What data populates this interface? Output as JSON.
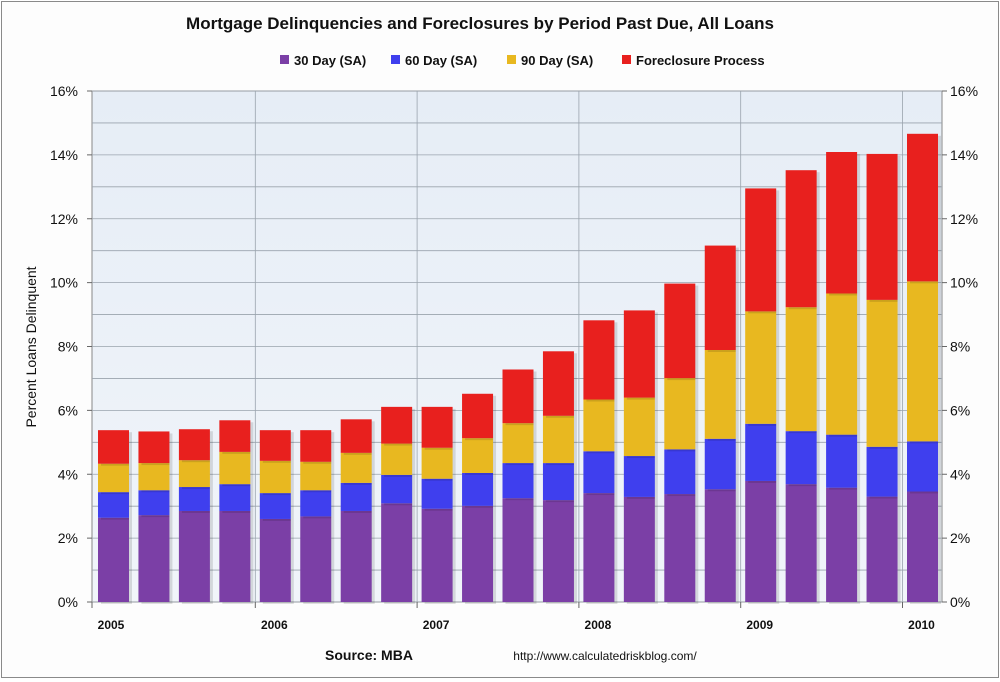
{
  "chart_data": {
    "type": "bar",
    "stacked": true,
    "title": "Mortgage Delinquencies and Foreclosures by Period Past Due, All Loans",
    "ylabel": "Percent Loans Delinquent",
    "xlabel": "",
    "ylim": [
      0,
      16
    ],
    "yticks": [
      "0%",
      "2%",
      "4%",
      "6%",
      "8%",
      "10%",
      "12%",
      "14%",
      "16%"
    ],
    "ytick_values": [
      0,
      2,
      4,
      6,
      8,
      10,
      12,
      14,
      16
    ],
    "xtick_labels": [
      "2005",
      "2006",
      "2007",
      "2008",
      "2009",
      "2010"
    ],
    "grid": true,
    "legend_position": "top",
    "categories": [
      "2005Q1",
      "2005Q2",
      "2005Q3",
      "2005Q4",
      "2006Q1",
      "2006Q2",
      "2006Q3",
      "2006Q4",
      "2007Q1",
      "2007Q2",
      "2007Q3",
      "2007Q4",
      "2008Q1",
      "2008Q2",
      "2008Q3",
      "2008Q4",
      "2009Q1",
      "2009Q2",
      "2009Q3",
      "2009Q4",
      "2010Q1"
    ],
    "series": [
      {
        "name": "30 Day (SA)",
        "color": "#7b3fa6",
        "values": [
          2.64,
          2.72,
          2.85,
          2.85,
          2.6,
          2.68,
          2.85,
          3.09,
          2.92,
          3.01,
          3.25,
          3.19,
          3.41,
          3.29,
          3.38,
          3.53,
          3.79,
          3.69,
          3.58,
          3.3,
          3.46
        ]
      },
      {
        "name": "60 Day (SA)",
        "color": "#3f3fee",
        "values": [
          0.8,
          0.78,
          0.75,
          0.84,
          0.81,
          0.82,
          0.88,
          0.89,
          0.94,
          1.03,
          1.1,
          1.16,
          1.31,
          1.28,
          1.4,
          1.58,
          1.79,
          1.66,
          1.66,
          1.56,
          1.57
        ]
      },
      {
        "name": "90 Day (SA)",
        "color": "#e8b820",
        "values": [
          0.89,
          0.85,
          0.84,
          1.01,
          1.01,
          0.89,
          0.94,
          0.98,
          0.97,
          1.09,
          1.25,
          1.48,
          1.62,
          1.83,
          2.23,
          2.78,
          3.52,
          3.88,
          4.42,
          4.6,
          5.01
        ]
      },
      {
        "name": "Foreclosure Process",
        "color": "#e8201e",
        "values": [
          1.05,
          0.99,
          0.97,
          0.99,
          0.96,
          0.99,
          1.05,
          1.15,
          1.28,
          1.39,
          1.68,
          2.02,
          2.48,
          2.73,
          2.96,
          3.27,
          3.85,
          4.29,
          4.43,
          4.57,
          4.62
        ]
      }
    ],
    "source": "Source: MBA",
    "url": "http://www.calculatedriskblog.com/"
  }
}
